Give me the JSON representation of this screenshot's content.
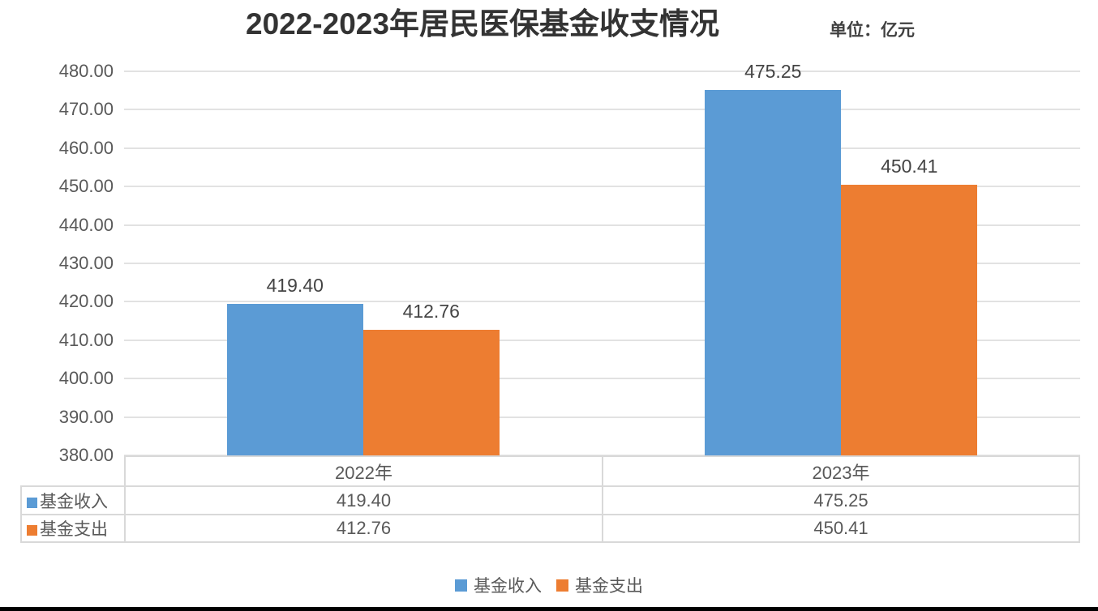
{
  "header": {
    "title": "2022-2023年居民医保基金收支情况",
    "unit_label": "单位：亿元"
  },
  "chart_data": {
    "type": "bar",
    "title": "2022-2023年居民医保基金收支情况",
    "unit": "亿元",
    "categories": [
      "2022年",
      "2023年"
    ],
    "series": [
      {
        "name": "基金收入",
        "color": "#5B9BD5",
        "values": [
          419.4,
          475.25
        ]
      },
      {
        "name": "基金支出",
        "color": "#ED7D31",
        "values": [
          412.76,
          450.41
        ]
      }
    ],
    "data_labels": [
      [
        "419.40",
        "475.25"
      ],
      [
        "412.76",
        "450.41"
      ]
    ],
    "ylim": [
      380,
      480
    ],
    "ytick_step": 10,
    "ytick_labels": [
      "380.00",
      "390.00",
      "400.00",
      "410.00",
      "420.00",
      "430.00",
      "440.00",
      "450.00",
      "460.00",
      "470.00",
      "480.00"
    ],
    "grid": true,
    "legend_position": "bottom",
    "colors": {
      "income_blue": "#5B9BD5",
      "expense_orange": "#ED7D31",
      "gridline": "#e2e2e2",
      "axis_text": "#595959"
    }
  },
  "data_table": {
    "column_headers": [
      "2022年",
      "2023年"
    ],
    "rows": [
      {
        "label": "基金收入",
        "color": "#5B9BD5",
        "values": [
          "419.40",
          "475.25"
        ]
      },
      {
        "label": "基金支出",
        "color": "#ED7D31",
        "values": [
          "412.76",
          "450.41"
        ]
      }
    ]
  },
  "legend": {
    "items": [
      {
        "label": "基金收入",
        "color": "#5B9BD5"
      },
      {
        "label": "基金支出",
        "color": "#ED7D31"
      }
    ]
  }
}
